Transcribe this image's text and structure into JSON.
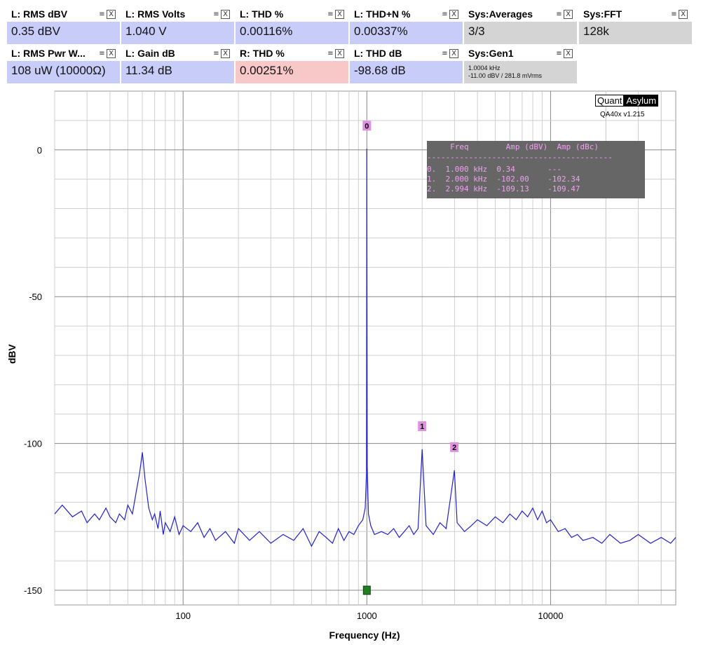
{
  "tiles": [
    {
      "title": "L: RMS dBV",
      "value": "0.35 dBV",
      "bg": "#c8ccf8"
    },
    {
      "title": "L: RMS Volts",
      "value": "1.040 V",
      "bg": "#c8ccf8"
    },
    {
      "title": "L: THD %",
      "value": "0.00116%",
      "bg": "#c8ccf8"
    },
    {
      "title": "L: THD+N %",
      "value": "0.00337%",
      "bg": "#c8ccf8"
    },
    {
      "title": "Sys:Averages",
      "value": "3/3",
      "bg": "#d4d4d4"
    },
    {
      "title": "Sys:FFT",
      "value": "128k",
      "bg": "#d4d4d4"
    },
    {
      "title": "L: RMS Pwr W...",
      "value": "108 uW (10000Ω)",
      "bg": "#c8ccf8"
    },
    {
      "title": "L: Gain dB",
      "value": "11.34 dB",
      "bg": "#c8ccf8"
    },
    {
      "title": "R: THD %",
      "value": "0.00251%",
      "bg": "#f8c8c8"
    },
    {
      "title": "L: THD dB",
      "value": "-98.68 dB",
      "bg": "#c8ccf8"
    },
    {
      "title": "Sys:Gen1",
      "value_line1": "1.0004 kHz",
      "value_line2": "-11.00 dBV  / 281.8 mVrms",
      "bg": "#d4d4d4"
    }
  ],
  "tile_icons": {
    "menu": "≡",
    "close": "X"
  },
  "logo": {
    "part1": "Quant",
    "part2": "Asylum",
    "version": "QA40x v1.215"
  },
  "harmonic_table": {
    "header": "     Freq        Amp (dBV)  Amp (dBc)",
    "divider": "----------------------------------------",
    "rows": [
      "0.  1.000 kHz  0.34       ---",
      "1.  2.000 kHz  -102.00    -102.34",
      "2.  2.994 kHz  -109.13    -109.47"
    ]
  },
  "chart_data": {
    "type": "line",
    "title": "",
    "xlabel": "Frequency (Hz)",
    "ylabel": "dBV",
    "xscale": "log",
    "xlim": [
      20,
      48000
    ],
    "ylim": [
      -155,
      20
    ],
    "x_ticks": [
      100,
      1000,
      10000
    ],
    "x_tick_labels": [
      "100",
      "1000",
      "10000"
    ],
    "y_ticks": [
      0,
      -50,
      -100,
      -150
    ],
    "y_tick_labels": [
      "0",
      "-50",
      "-100",
      "-150"
    ],
    "grid": true,
    "line_color": "#2020d0",
    "series": [
      {
        "x": [
          20,
          22,
          25,
          28,
          30,
          33,
          35,
          38,
          40,
          43,
          45,
          48,
          50,
          53,
          55,
          58,
          60,
          62,
          65,
          68,
          70,
          73,
          75,
          78,
          80,
          85,
          90,
          95,
          100,
          110,
          120,
          130,
          140,
          150,
          170,
          190,
          200,
          230,
          260,
          300,
          350,
          400,
          450,
          500,
          550,
          600,
          650,
          700,
          750,
          800,
          850,
          900,
          950,
          980,
          995,
          1000,
          1005,
          1020,
          1050,
          1100,
          1200,
          1300,
          1400,
          1500,
          1600,
          1700,
          1800,
          1900,
          2000,
          2100,
          2300,
          2500,
          2700,
          2994,
          3100,
          3400,
          3700,
          4000,
          4500,
          5000,
          5500,
          6000,
          6500,
          7000,
          7500,
          8000,
          8500,
          9000,
          9500,
          10000,
          11000,
          12000,
          13000,
          14000,
          15000,
          17000,
          19000,
          21000,
          24000,
          27000,
          30000,
          35000,
          40000,
          45000,
          48000
        ],
        "y": [
          -124,
          -121,
          -125,
          -123,
          -127,
          -124,
          -126,
          -122,
          -125,
          -127,
          -124,
          -126,
          -121,
          -124,
          -118,
          -110,
          -103,
          -112,
          -122,
          -126,
          -124,
          -129,
          -123,
          -131,
          -127,
          -130,
          -125,
          -131,
          -128,
          -130,
          -127,
          -132,
          -129,
          -133,
          -130,
          -134,
          -129,
          -133,
          -130,
          -134,
          -131,
          -133,
          -129,
          -135,
          -130,
          -132,
          -134,
          -129,
          -133,
          -130,
          -131,
          -128,
          -126,
          -122,
          -110,
          0.34,
          -108,
          -124,
          -128,
          -131,
          -130,
          -131,
          -129,
          -132,
          -130,
          -128,
          -131,
          -129,
          -102,
          -128,
          -131,
          -127,
          -129,
          -109.13,
          -127,
          -130,
          -128,
          -126,
          -128,
          -125,
          -127,
          -124,
          -126,
          -123,
          -125,
          -122,
          -126,
          -123,
          -127,
          -126,
          -130,
          -129,
          -132,
          -131,
          -133,
          -132,
          -134,
          -131,
          -134,
          -133,
          -131,
          -134,
          -132,
          -134,
          -132
        ]
      }
    ],
    "markers": [
      {
        "label": "0",
        "x": 1000,
        "y": 0.34
      },
      {
        "label": "1",
        "x": 2000,
        "y": -102
      },
      {
        "label": "2",
        "x": 2994,
        "y": -109.13
      }
    ],
    "marker_color": "#e090e0",
    "cursor": {
      "x": 1000,
      "y": -150,
      "color": "#208020"
    }
  }
}
